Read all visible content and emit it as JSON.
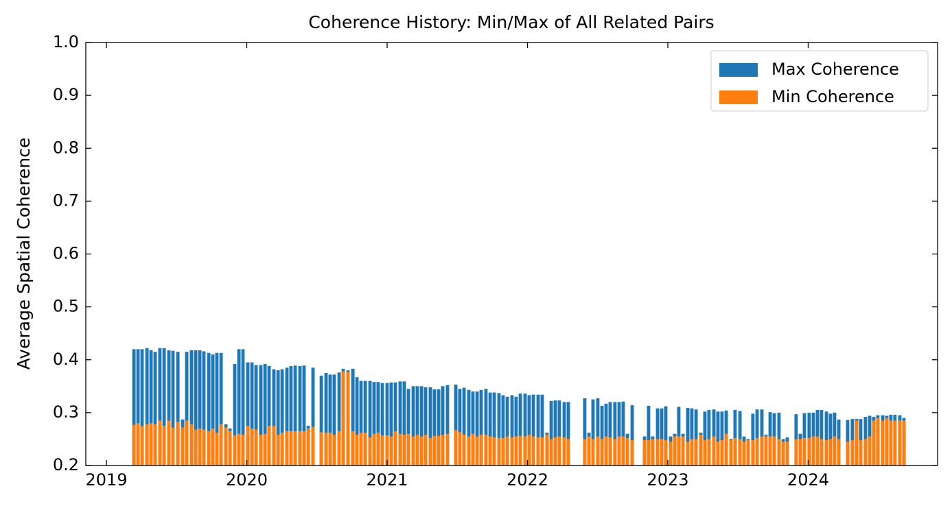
{
  "chart_data": {
    "type": "bar",
    "title": "Coherence History: Min/Max of All Related Pairs",
    "y_label": "Average Spatial Coherence",
    "x": [
      2019.196,
      2019.225,
      2019.254,
      2019.289,
      2019.318,
      2019.347,
      2019.381,
      2019.411,
      2019.445,
      2019.474,
      2019.509,
      2019.543,
      2019.572,
      2019.606,
      2019.636,
      2019.665,
      2019.694,
      2019.729,
      2019.758,
      2019.787,
      2019.817,
      2019.851,
      2019.88,
      2019.914,
      2019.944,
      2019.973,
      2020.007,
      2020.037,
      2020.066,
      2020.1,
      2020.13,
      2020.159,
      2020.193,
      2020.223,
      2020.252,
      2020.286,
      2020.315,
      2020.345,
      2020.379,
      2020.408,
      2020.438,
      2020.472,
      2020.531,
      2020.565,
      2020.594,
      2020.623,
      2020.658,
      2020.687,
      2020.721,
      2020.756,
      2020.785,
      2020.814,
      2020.844,
      2020.878,
      2020.907,
      2020.936,
      2020.966,
      2021.0,
      2021.029,
      2021.059,
      2021.093,
      2021.122,
      2021.152,
      2021.186,
      2021.215,
      2021.245,
      2021.274,
      2021.308,
      2021.337,
      2021.367,
      2021.396,
      2021.43,
      2021.489,
      2021.518,
      2021.548,
      2021.582,
      2021.611,
      2021.641,
      2021.67,
      2021.704,
      2021.734,
      2021.763,
      2021.797,
      2021.826,
      2021.856,
      2021.89,
      2021.919,
      2021.949,
      2021.983,
      2022.012,
      2022.042,
      2022.076,
      2022.105,
      2022.139,
      2022.169,
      2022.198,
      2022.227,
      2022.262,
      2022.291,
      2022.408,
      2022.438,
      2022.467,
      2022.501,
      2022.531,
      2022.56,
      2022.589,
      2022.623,
      2022.653,
      2022.682,
      2022.712,
      2022.746,
      2022.834,
      2022.863,
      2022.892,
      2022.927,
      2022.956,
      2022.985,
      2023.02,
      2023.049,
      2023.078,
      2023.108,
      2023.142,
      2023.171,
      2023.201,
      2023.235,
      2023.264,
      2023.293,
      2023.328,
      2023.357,
      2023.386,
      2023.416,
      2023.45,
      2023.479,
      2023.514,
      2023.543,
      2023.572,
      2023.606,
      2023.636,
      2023.67,
      2023.699,
      2023.729,
      2023.758,
      2023.792,
      2023.822,
      2023.851,
      2023.914,
      2023.944,
      2023.973,
      2024.007,
      2024.037,
      2024.066,
      2024.095,
      2024.13,
      2024.159,
      2024.188,
      2024.218,
      2024.281,
      2024.315,
      2024.345,
      2024.374,
      2024.408,
      2024.438,
      2024.467,
      2024.496,
      2024.531,
      2024.56,
      2024.589,
      2024.618,
      2024.653,
      2024.682
    ],
    "series": [
      {
        "name": "Max Coherence",
        "color": "#1f77b4",
        "values": [
          0.42,
          0.42,
          0.42,
          0.422,
          0.418,
          0.415,
          0.422,
          0.422,
          0.418,
          0.417,
          0.415,
          0.287,
          0.415,
          0.418,
          0.418,
          0.418,
          0.416,
          0.413,
          0.41,
          0.413,
          0.413,
          0.278,
          0.27,
          0.392,
          0.42,
          0.42,
          0.395,
          0.395,
          0.39,
          0.39,
          0.392,
          0.388,
          0.382,
          0.38,
          0.382,
          0.385,
          0.388,
          0.389,
          0.388,
          0.389,
          0.275,
          0.385,
          0.37,
          0.375,
          0.372,
          0.372,
          0.376,
          0.383,
          0.38,
          0.383,
          0.367,
          0.36,
          0.36,
          0.36,
          0.358,
          0.358,
          0.356,
          0.356,
          0.357,
          0.357,
          0.359,
          0.359,
          0.345,
          0.35,
          0.35,
          0.35,
          0.348,
          0.348,
          0.344,
          0.344,
          0.35,
          0.352,
          0.353,
          0.345,
          0.347,
          0.343,
          0.34,
          0.34,
          0.343,
          0.345,
          0.338,
          0.338,
          0.337,
          0.333,
          0.33,
          0.333,
          0.33,
          0.336,
          0.336,
          0.333,
          0.334,
          0.334,
          0.334,
          0.262,
          0.322,
          0.323,
          0.323,
          0.32,
          0.32,
          0.327,
          0.262,
          0.325,
          0.327,
          0.313,
          0.317,
          0.32,
          0.32,
          0.32,
          0.321,
          0.26,
          0.314,
          0.255,
          0.313,
          0.255,
          0.308,
          0.308,
          0.312,
          0.255,
          0.26,
          0.311,
          0.26,
          0.309,
          0.308,
          0.306,
          0.262,
          0.302,
          0.305,
          0.306,
          0.302,
          0.302,
          0.304,
          0.25,
          0.305,
          0.303,
          0.255,
          0.25,
          0.298,
          0.306,
          0.306,
          0.258,
          0.301,
          0.299,
          0.3,
          0.25,
          0.253,
          0.297,
          0.26,
          0.299,
          0.3,
          0.3,
          0.305,
          0.305,
          0.302,
          0.298,
          0.3,
          0.287,
          0.286,
          0.288,
          0.288,
          0.288,
          0.292,
          0.294,
          0.292,
          0.295,
          0.295,
          0.294,
          0.296,
          0.296,
          0.295,
          0.29
        ]
      },
      {
        "name": "Min Coherence",
        "color": "#ff7f0e",
        "values": [
          0.277,
          0.28,
          0.275,
          0.278,
          0.28,
          0.278,
          0.285,
          0.275,
          0.285,
          0.272,
          0.283,
          0.272,
          0.285,
          0.278,
          0.268,
          0.27,
          0.268,
          0.265,
          0.27,
          0.262,
          0.278,
          0.272,
          0.265,
          0.257,
          0.26,
          0.258,
          0.275,
          0.27,
          0.268,
          0.258,
          0.26,
          0.275,
          0.275,
          0.258,
          0.262,
          0.265,
          0.265,
          0.265,
          0.265,
          0.265,
          0.27,
          0.273,
          0.263,
          0.262,
          0.262,
          0.258,
          0.265,
          0.378,
          0.377,
          0.265,
          0.258,
          0.262,
          0.262,
          0.253,
          0.26,
          0.262,
          0.257,
          0.257,
          0.255,
          0.265,
          0.26,
          0.258,
          0.26,
          0.255,
          0.258,
          0.255,
          0.258,
          0.252,
          0.256,
          0.256,
          0.258,
          0.26,
          0.267,
          0.263,
          0.258,
          0.255,
          0.26,
          0.255,
          0.258,
          0.258,
          0.255,
          0.253,
          0.252,
          0.252,
          0.255,
          0.253,
          0.255,
          0.256,
          0.255,
          0.258,
          0.255,
          0.253,
          0.253,
          0.258,
          0.25,
          0.253,
          0.255,
          0.253,
          0.25,
          0.25,
          0.255,
          0.25,
          0.255,
          0.25,
          0.255,
          0.253,
          0.25,
          0.255,
          0.255,
          0.252,
          0.248,
          0.248,
          0.248,
          0.25,
          0.25,
          0.25,
          0.248,
          0.245,
          0.255,
          0.255,
          0.255,
          0.245,
          0.25,
          0.25,
          0.258,
          0.248,
          0.25,
          0.255,
          0.245,
          0.248,
          0.26,
          0.248,
          0.252,
          0.25,
          0.245,
          0.248,
          0.248,
          0.252,
          0.255,
          0.255,
          0.255,
          0.255,
          0.25,
          0.245,
          0.245,
          0.25,
          0.25,
          0.252,
          0.252,
          0.255,
          0.255,
          0.25,
          0.248,
          0.25,
          0.255,
          0.25,
          0.245,
          0.248,
          0.285,
          0.248,
          0.25,
          0.255,
          0.285,
          0.29,
          0.285,
          0.29,
          0.285,
          0.285,
          0.285,
          0.285
        ]
      }
    ],
    "xlim": [
      2018.853,
      2024.922
    ],
    "xticks": [
      2019,
      2020,
      2021,
      2022,
      2023,
      2024
    ],
    "ylim": [
      0.2,
      1
    ],
    "yticks": [
      0.2,
      0.3,
      0.4,
      0.5,
      0.6,
      0.7,
      0.8,
      0.9,
      {
        "value": 1,
        "label": "1.0"
      }
    ],
    "legend": "upper right"
  }
}
